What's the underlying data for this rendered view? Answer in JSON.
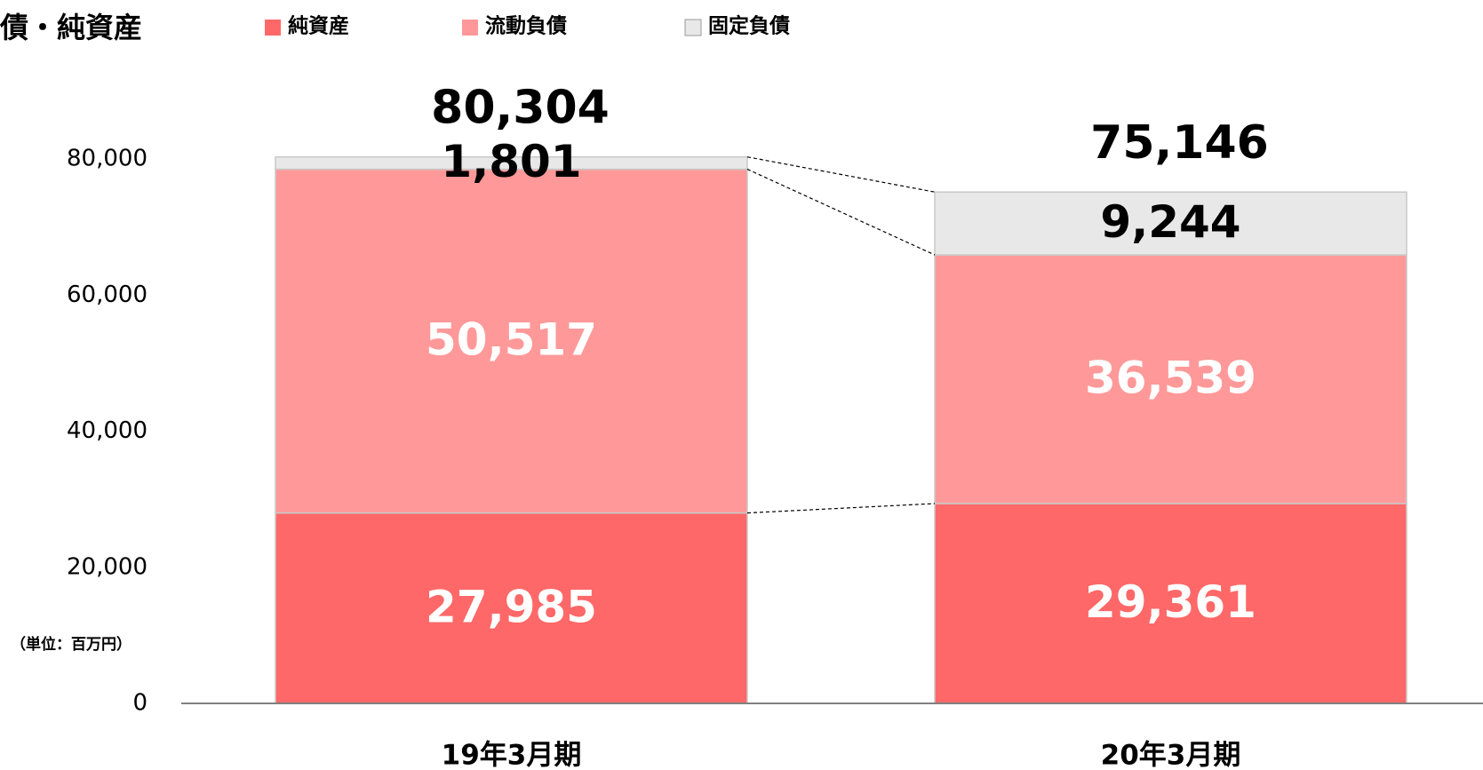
{
  "chart_data": {
    "type": "stacked_bar",
    "title": "債・純資産",
    "note": "（単位：百万円）",
    "categories": [
      "19年3月期",
      "20年3月期"
    ],
    "series": [
      {
        "name": "純資産",
        "color": "#ff6868",
        "label_color": "#ffffff",
        "values": [
          27985,
          29361
        ],
        "value_labels": [
          "27,985",
          "29,361"
        ]
      },
      {
        "name": "流動負債",
        "color": "#ff9999",
        "label_color": "#ffffff",
        "values": [
          50517,
          36539
        ],
        "value_labels": [
          "50,517",
          "36,539"
        ]
      },
      {
        "name": "固定負債",
        "color": "#e8e8e8",
        "label_color": "#000000",
        "values": [
          1801,
          9244
        ],
        "value_labels": [
          "1,801",
          "9,244"
        ]
      }
    ],
    "totals": [
      80304,
      75146
    ],
    "total_labels": [
      "80,304",
      "75,146"
    ],
    "ylim": [
      0,
      80000
    ],
    "yticks": [
      0,
      {
        "value": 20000,
        "label": "20,000"
      },
      {
        "value": 40000,
        "label": "40,000"
      },
      {
        "value": 60000,
        "label": "60,000"
      },
      {
        "value": 80000,
        "label": "80,000"
      }
    ],
    "grid": false
  }
}
